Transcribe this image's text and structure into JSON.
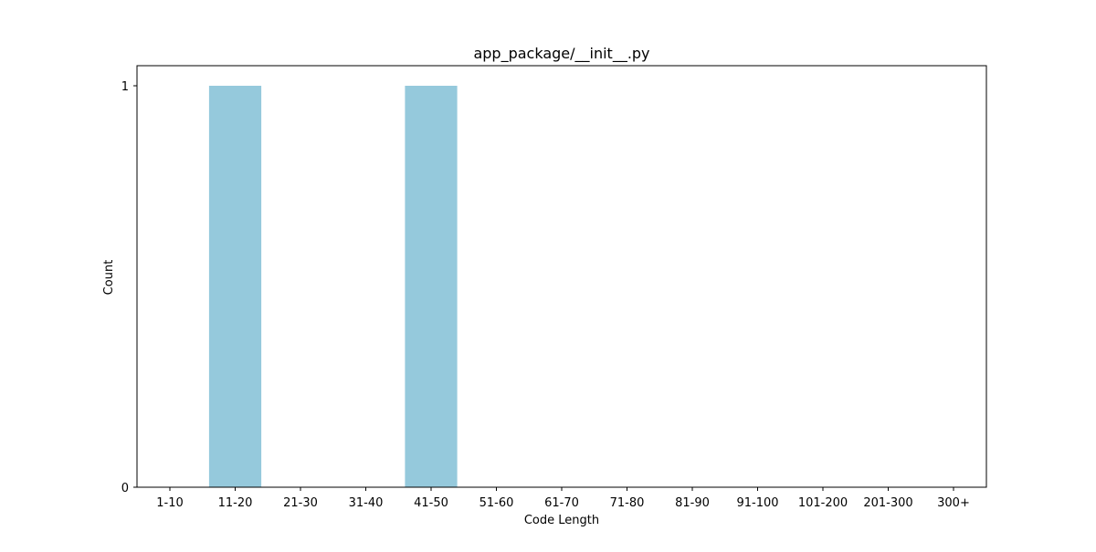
{
  "chart_data": {
    "type": "bar",
    "title": "app_package/__init__.py",
    "xlabel": "Code Length",
    "ylabel": "Count",
    "categories": [
      "1-10",
      "11-20",
      "21-30",
      "31-40",
      "41-50",
      "51-60",
      "61-70",
      "71-80",
      "81-90",
      "91-100",
      "101-200",
      "201-300",
      "300+"
    ],
    "values": [
      0,
      1,
      0,
      0,
      1,
      0,
      0,
      0,
      0,
      0,
      0,
      0,
      0
    ],
    "ylim": [
      0,
      1.05
    ],
    "yticks": [
      "0",
      "1"
    ],
    "grid": false,
    "legend": "none",
    "bar_color": "#95c9dc"
  }
}
